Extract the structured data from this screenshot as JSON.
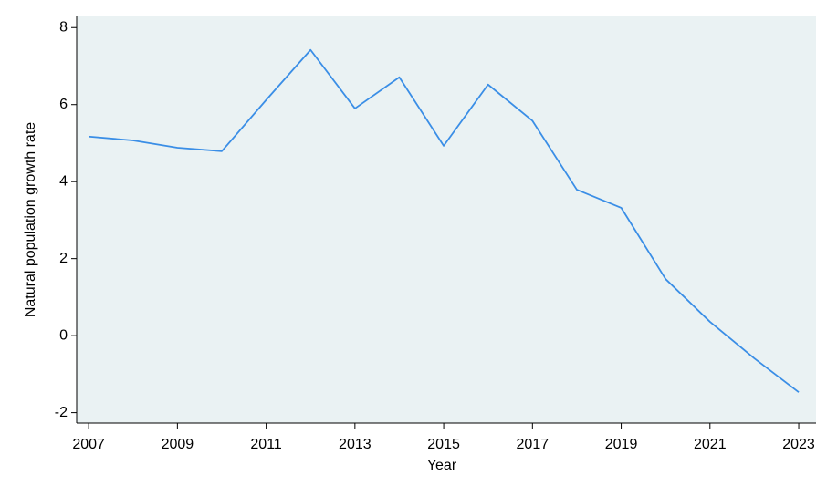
{
  "chart_data": {
    "type": "line",
    "x_label": "Year",
    "y_label": "Natural population growth rate",
    "x": [
      2007,
      2008,
      2009,
      2010,
      2011,
      2012,
      2013,
      2014,
      2015,
      2016,
      2017,
      2018,
      2019,
      2020,
      2021,
      2022,
      2023
    ],
    "series": [
      {
        "color": "#3a8ee6",
        "values": [
          5.17,
          5.07,
          4.88,
          4.79,
          6.12,
          7.42,
          5.9,
          6.71,
          4.93,
          6.52,
          5.58,
          3.79,
          3.32,
          1.47,
          0.36,
          -0.59,
          -1.47
        ]
      }
    ],
    "xlim": [
      2006.73,
      2023.39
    ],
    "xticks": [
      2007,
      2009,
      2011,
      2013,
      2015,
      2017,
      2019,
      2021,
      2023
    ],
    "ylim": [
      -2.27,
      8.29
    ],
    "yticks": [
      -2,
      0,
      2,
      4,
      6,
      8
    ],
    "background": "#eaf2f3"
  }
}
